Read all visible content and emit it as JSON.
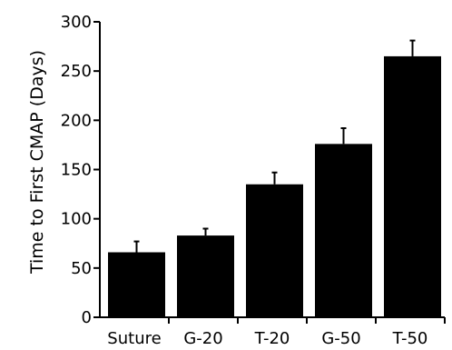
{
  "chart_data": {
    "type": "bar",
    "categories": [
      "Suture",
      "G-20",
      "T-20",
      "G-50",
      "T-50"
    ],
    "values": [
      66,
      83,
      135,
      176,
      265
    ],
    "errors": [
      11,
      7,
      12,
      16,
      16
    ],
    "title": "",
    "xlabel": "",
    "ylabel": "Time to First CMAP (Days)",
    "ylim": [
      0,
      300
    ],
    "yticks": [
      0,
      50,
      100,
      150,
      200,
      250,
      300
    ],
    "grid": false,
    "legend": "none",
    "bar_color": "#000000",
    "axis_color": "#000000"
  }
}
